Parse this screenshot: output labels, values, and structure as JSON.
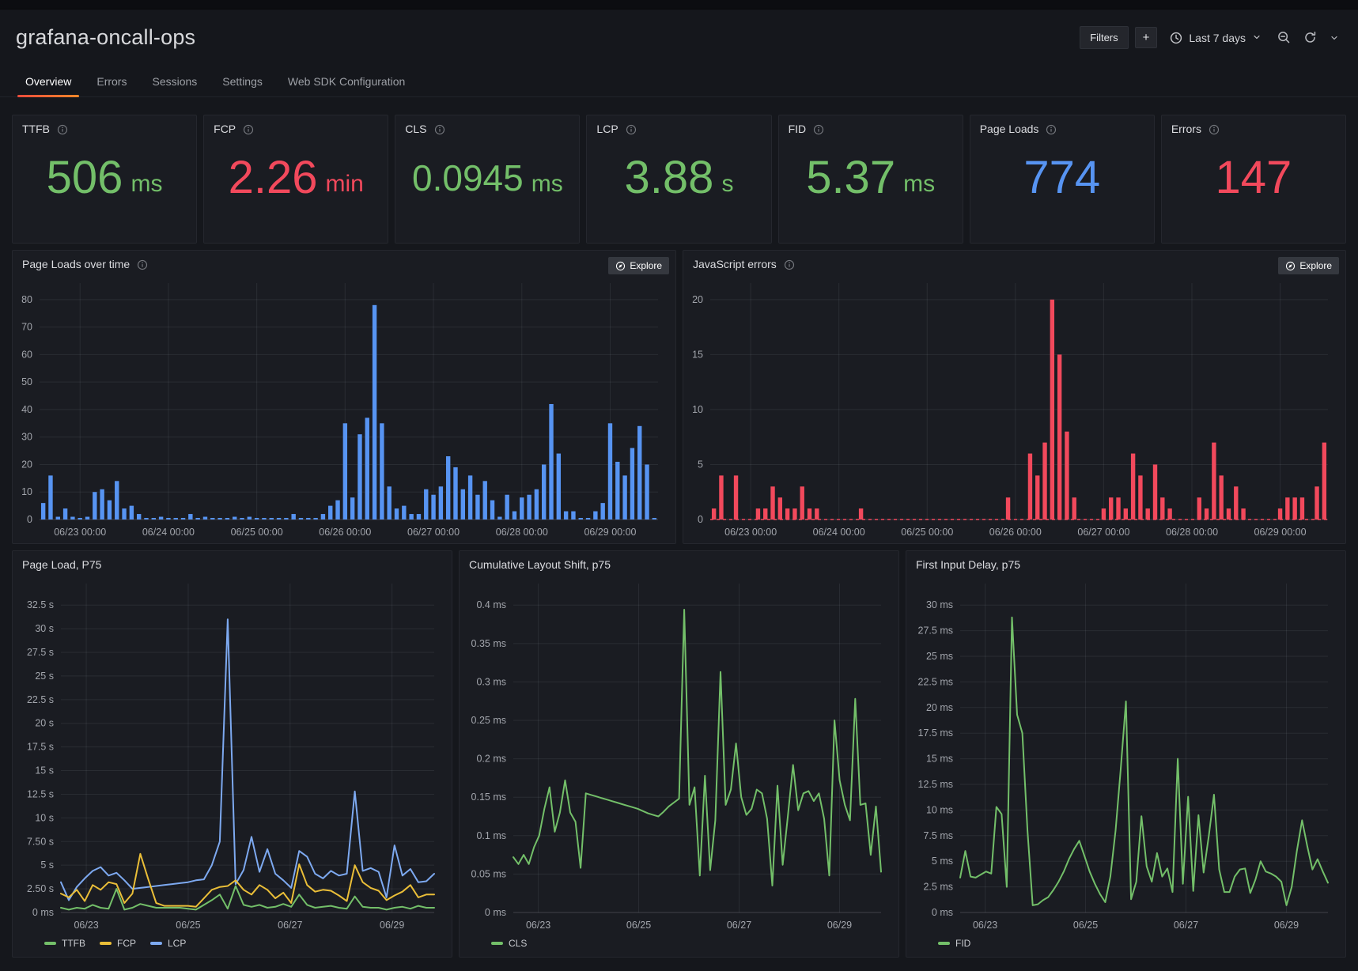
{
  "header": {
    "title": "grafana-oncall-ops",
    "filters_label": "Filters",
    "add_label": "+",
    "time_range": "Last 7 days"
  },
  "tabs": [
    {
      "label": "Overview"
    },
    {
      "label": "Errors"
    },
    {
      "label": "Sessions"
    },
    {
      "label": "Settings"
    },
    {
      "label": "Web SDK Configuration"
    }
  ],
  "explore_label": "Explore",
  "colors": {
    "green": "#73bf69",
    "red": "#f2495c",
    "blue": "#5794f2",
    "yellow": "#eabe38",
    "line_blue": "#7da9f0",
    "tab_accent": "#f0633a"
  },
  "stats": [
    {
      "title": "TTFB",
      "value": "506",
      "unit": "ms",
      "color": "#73bf69"
    },
    {
      "title": "FCP",
      "value": "2.26",
      "unit": "min",
      "color": "#f2495c"
    },
    {
      "title": "CLS",
      "value": "0.0945",
      "unit": "ms",
      "color": "#73bf69"
    },
    {
      "title": "LCP",
      "value": "3.88",
      "unit": "s",
      "color": "#73bf69"
    },
    {
      "title": "FID",
      "value": "5.37",
      "unit": "ms",
      "color": "#73bf69"
    },
    {
      "title": "Page Loads",
      "value": "774",
      "unit": "",
      "color": "#5794f2"
    },
    {
      "title": "Errors",
      "value": "147",
      "unit": "",
      "color": "#f2495c"
    }
  ],
  "chart_data": [
    {
      "title": "Page Loads over time",
      "type": "bar",
      "color": "#5794f2",
      "zero_line": false,
      "ylim": [
        0,
        80
      ],
      "grid": true,
      "yticks": [
        [
          0,
          "0"
        ],
        [
          10,
          "10"
        ],
        [
          20,
          "20"
        ],
        [
          30,
          "30"
        ],
        [
          40,
          "40"
        ],
        [
          50,
          "50"
        ],
        [
          60,
          "60"
        ],
        [
          70,
          "70"
        ],
        [
          80,
          "80"
        ]
      ],
      "xticks": [
        [
          0.0655,
          "06/23 00:00"
        ],
        [
          0.2083,
          "06/24 00:00"
        ],
        [
          0.3512,
          "06/25 00:00"
        ],
        [
          0.494,
          "06/26 00:00"
        ],
        [
          0.6369,
          "06/27 00:00"
        ],
        [
          0.7798,
          "06/28 00:00"
        ],
        [
          0.9226,
          "06/29 00:00"
        ]
      ],
      "values": [
        6,
        16,
        1,
        4,
        1,
        0.4,
        1,
        10,
        11,
        7,
        14,
        4,
        5,
        2,
        0.4,
        0.4,
        1,
        0.4,
        0.4,
        0.4,
        2,
        0.4,
        1,
        0.4,
        0.4,
        0.4,
        1,
        0.4,
        1,
        0.4,
        0.4,
        0.4,
        0.4,
        0.4,
        2,
        0.4,
        0.4,
        0.4,
        2,
        5,
        7,
        35,
        8,
        31,
        37,
        78,
        35,
        12,
        4,
        5,
        2,
        2,
        11,
        9,
        12,
        23,
        19,
        11,
        16,
        9,
        14,
        7,
        1,
        9,
        3,
        8,
        9,
        11,
        20,
        42,
        24,
        3,
        3,
        0.4,
        0.4,
        3,
        6,
        35,
        21,
        16,
        26,
        34,
        20,
        0.4
      ]
    },
    {
      "title": "JavaScript errors",
      "type": "bar",
      "color": "#f2495c",
      "zero_line": true,
      "ylim": [
        0,
        20
      ],
      "grid": true,
      "yticks": [
        [
          0,
          "0"
        ],
        [
          5,
          "5"
        ],
        [
          10,
          "10"
        ],
        [
          15,
          "15"
        ],
        [
          20,
          "20"
        ]
      ],
      "xticks": [
        [
          0.0655,
          "06/23 00:00"
        ],
        [
          0.2083,
          "06/24 00:00"
        ],
        [
          0.3512,
          "06/25 00:00"
        ],
        [
          0.494,
          "06/26 00:00"
        ],
        [
          0.6369,
          "06/27 00:00"
        ],
        [
          0.7798,
          "06/28 00:00"
        ],
        [
          0.9226,
          "06/29 00:00"
        ]
      ],
      "values": [
        1,
        4,
        0,
        4,
        0,
        0,
        1,
        1,
        3,
        2,
        1,
        1,
        3,
        1,
        1,
        0,
        0,
        0,
        0,
        0,
        1,
        0,
        0,
        0,
        0,
        0,
        0,
        0,
        0,
        0,
        0,
        0,
        0,
        0,
        0,
        0,
        0,
        0,
        0,
        0,
        2,
        0,
        0,
        6,
        4,
        7,
        20,
        15,
        8,
        2,
        0,
        0,
        0,
        1,
        2,
        2,
        1,
        6,
        4,
        1,
        5,
        2,
        1,
        0,
        0,
        0,
        2,
        1,
        7,
        4,
        1,
        3,
        1,
        0,
        0,
        0,
        0,
        1,
        2,
        2,
        2,
        0,
        3,
        7
      ]
    },
    {
      "title": "Page Load, P75",
      "type": "line",
      "grid": true,
      "legend_position": "bottom",
      "ylim": [
        0,
        32.5
      ],
      "yticks": [
        [
          0,
          "0 ms"
        ],
        [
          2.5,
          "2.50 s"
        ],
        [
          5,
          "5 s"
        ],
        [
          7.5,
          "7.50 s"
        ],
        [
          10,
          "10 s"
        ],
        [
          12.5,
          "12.5 s"
        ],
        [
          15,
          "15 s"
        ],
        [
          17.5,
          "17.5 s"
        ],
        [
          20,
          "20 s"
        ],
        [
          22.5,
          "22.5 s"
        ],
        [
          25,
          "25 s"
        ],
        [
          27.5,
          "27.5 s"
        ],
        [
          30,
          "30 s"
        ],
        [
          32.5,
          "32.5 s"
        ]
      ],
      "xticks": [
        [
          0.068,
          "06/23"
        ],
        [
          0.341,
          "06/25"
        ],
        [
          0.614,
          "06/27"
        ],
        [
          0.887,
          "06/29"
        ]
      ],
      "series": [
        {
          "name": "TTFB",
          "color": "#73bf69",
          "values": [
            0.5,
            0.3,
            0.5,
            0.4,
            0.8,
            0.5,
            0.4,
            2.5,
            0.3,
            0.5,
            0.9,
            0.7,
            0.5,
            0.5,
            0.5,
            0.5,
            0.4,
            0.3,
            0.8,
            1.3,
            1.9,
            0.4,
            2.8,
            0.8,
            0.6,
            0.8,
            0.5,
            0.6,
            0.9,
            0.6,
            1.9,
            0.8,
            0.5,
            0.6,
            0.7,
            0.5,
            0.4,
            1.7,
            0.6,
            0.5,
            0.5,
            0.3,
            0.5,
            0.6,
            0.4,
            0.7,
            0.5,
            0.5
          ]
        },
        {
          "name": "FCP",
          "color": "#eabe38",
          "values": [
            2.0,
            1.6,
            2.4,
            1.2,
            2.9,
            2.4,
            3.2,
            3.0,
            1.0,
            2.0,
            6.2,
            3.5,
            1.0,
            0.7,
            0.7,
            0.7,
            0.7,
            0.6,
            1.5,
            2.4,
            2.7,
            2.8,
            3.4,
            2.4,
            1.9,
            2.9,
            2.4,
            1.5,
            2.1,
            1.0,
            5.1,
            2.9,
            2.2,
            2.4,
            2.3,
            1.8,
            1.2,
            5.0,
            3.2,
            2.6,
            2.3,
            1.3,
            1.8,
            2.2,
            2.9,
            1.6,
            1.9,
            1.9
          ]
        },
        {
          "name": "LCP",
          "color": "#7da9f0",
          "values": [
            3.2,
            1.3,
            2.7,
            3.6,
            4.4,
            4.8,
            3.9,
            4.2,
            3.4,
            2.5,
            2.6,
            2.7,
            2.8,
            2.9,
            3.0,
            3.1,
            3.2,
            3.4,
            3.5,
            5.0,
            7.5,
            31.0,
            3.0,
            4.5,
            8.0,
            4.3,
            6.7,
            4.1,
            3.4,
            2.6,
            6.5,
            5.9,
            4.1,
            3.6,
            4.4,
            3.9,
            4.1,
            12.8,
            4.4,
            4.7,
            4.3,
            1.6,
            7.1,
            3.9,
            4.6,
            3.2,
            3.3,
            4.1
          ]
        }
      ]
    },
    {
      "title": "Cumulative Layout Shift, p75",
      "type": "line",
      "grid": true,
      "legend_position": "bottom",
      "ylim": [
        0,
        0.4
      ],
      "yticks": [
        [
          0,
          "0 ms"
        ],
        [
          0.05,
          "0.05 ms"
        ],
        [
          0.1,
          "0.1 ms"
        ],
        [
          0.15,
          "0.15 ms"
        ],
        [
          0.2,
          "0.2 ms"
        ],
        [
          0.25,
          "0.25 ms"
        ],
        [
          0.3,
          "0.3 ms"
        ],
        [
          0.35,
          "0.35 ms"
        ],
        [
          0.4,
          "0.4 ms"
        ]
      ],
      "xticks": [
        [
          0.068,
          "06/23"
        ],
        [
          0.341,
          "06/25"
        ],
        [
          0.614,
          "06/27"
        ],
        [
          0.887,
          "06/29"
        ]
      ],
      "series": [
        {
          "name": "CLS",
          "color": "#73bf69",
          "values": [
            0.072,
            0.063,
            0.075,
            0.063,
            0.085,
            0.1,
            0.135,
            0.163,
            0.105,
            0.13,
            0.172,
            0.13,
            0.118,
            0.058,
            0.155,
            0.153,
            0.151,
            0.149,
            0.147,
            0.145,
            0.143,
            0.141,
            0.139,
            0.137,
            0.135,
            0.132,
            0.129,
            0.127,
            0.125,
            0.131,
            0.138,
            0.143,
            0.148,
            0.394,
            0.14,
            0.163,
            0.048,
            0.178,
            0.055,
            0.12,
            0.313,
            0.14,
            0.16,
            0.22,
            0.15,
            0.127,
            0.135,
            0.16,
            0.155,
            0.122,
            0.035,
            0.165,
            0.062,
            0.125,
            0.192,
            0.133,
            0.155,
            0.158,
            0.145,
            0.155,
            0.122,
            0.048,
            0.25,
            0.172,
            0.14,
            0.12,
            0.278,
            0.14,
            0.142,
            0.075,
            0.138,
            0.053
          ]
        }
      ]
    },
    {
      "title": "First Input Delay, p75",
      "type": "line",
      "grid": true,
      "legend_position": "bottom",
      "ylim": [
        0,
        30
      ],
      "yticks": [
        [
          0,
          "0 ms"
        ],
        [
          2.5,
          "2.5 ms"
        ],
        [
          5,
          "5 ms"
        ],
        [
          7.5,
          "7.5 ms"
        ],
        [
          10,
          "10 ms"
        ],
        [
          12.5,
          "12.5 ms"
        ],
        [
          15,
          "15 ms"
        ],
        [
          17.5,
          "17.5 ms"
        ],
        [
          20,
          "20 ms"
        ],
        [
          22.5,
          "22.5 ms"
        ],
        [
          25,
          "25 ms"
        ],
        [
          27.5,
          "27.5 ms"
        ],
        [
          30,
          "30 ms"
        ]
      ],
      "xticks": [
        [
          0.068,
          "06/23"
        ],
        [
          0.341,
          "06/25"
        ],
        [
          0.614,
          "06/27"
        ],
        [
          0.887,
          "06/29"
        ]
      ],
      "series": [
        {
          "name": "FID",
          "color": "#73bf69",
          "values": [
            3.4,
            6.0,
            3.5,
            3.4,
            3.7,
            4.0,
            3.8,
            10.3,
            9.6,
            2.5,
            28.8,
            19.3,
            17.5,
            8.0,
            0.7,
            0.8,
            1.2,
            1.5,
            2.2,
            3.0,
            4.0,
            5.2,
            6.2,
            7.0,
            5.5,
            4.0,
            2.8,
            1.8,
            1.0,
            3.5,
            8.0,
            14.0,
            20.6,
            1.3,
            3.0,
            9.4,
            4.5,
            3.0,
            5.8,
            3.5,
            4.3,
            2.0,
            15.0,
            2.8,
            11.3,
            2.1,
            9.5,
            3.9,
            7.5,
            11.5,
            4.2,
            2.0,
            2.0,
            3.5,
            4.2,
            4.3,
            1.9,
            3.2,
            5.0,
            4.0,
            3.8,
            3.5,
            3.0,
            0.7,
            2.5,
            6.0,
            9.0,
            6.5,
            4.2,
            5.2,
            4.0,
            2.9
          ]
        }
      ]
    }
  ]
}
